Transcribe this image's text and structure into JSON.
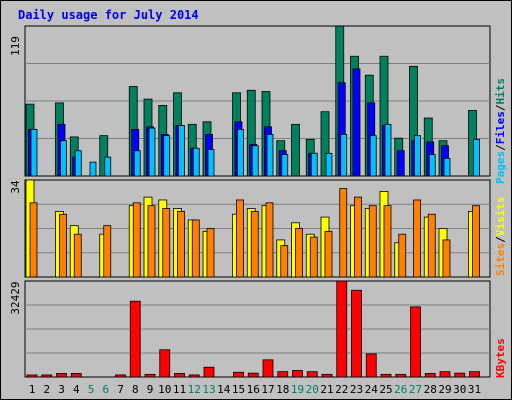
{
  "title": "Daily usage for July 2014",
  "colors": {
    "hits": "#00805c",
    "files": "#0000ff",
    "pages": "#00c0ff",
    "visits": "#ffff00",
    "sites": "#ff8000",
    "kbytes": "#ff0000",
    "weekend": "#00805c",
    "day": "#000000"
  },
  "panel_labels": {
    "top_max": "119",
    "mid_max": "34",
    "bot_max": "32429",
    "pages": "Pages",
    "files": "Files",
    "hits": "Hits",
    "sites": "Sites",
    "visits": "Visits",
    "kbytes": "KBytes",
    "sep": "/"
  },
  "chart_data": [
    {
      "type": "bar",
      "title": "Daily usage for July 2014",
      "categories": [
        "1",
        "2",
        "3",
        "4",
        "5",
        "6",
        "7",
        "8",
        "9",
        "10",
        "11",
        "12",
        "13",
        "14",
        "15",
        "16",
        "17",
        "18",
        "19",
        "20",
        "21",
        "22",
        "23",
        "24",
        "25",
        "26",
        "27",
        "28",
        "29",
        "30",
        "31"
      ],
      "weekend_days": [
        "5",
        "6",
        "12",
        "13",
        "19",
        "20",
        "26",
        "27"
      ],
      "ylim": [
        0,
        119
      ],
      "series": [
        {
          "name": "Hits",
          "values": [
            57,
            0,
            58,
            31,
            0,
            32,
            0,
            71,
            61,
            56,
            66,
            41,
            43,
            0,
            66,
            68,
            67,
            28,
            41,
            29,
            51,
            119,
            95,
            80,
            95,
            30,
            87,
            46,
            28,
            0,
            52
          ]
        },
        {
          "name": "Files",
          "values": [
            37,
            0,
            41,
            15,
            0,
            0,
            0,
            37,
            39,
            33,
            40,
            22,
            33,
            0,
            43,
            25,
            39,
            20,
            0,
            18,
            0,
            74,
            85,
            58,
            40,
            20,
            28,
            27,
            24,
            0,
            0
          ]
        },
        {
          "name": "Pages",
          "values": [
            37,
            0,
            28,
            20,
            11,
            15,
            0,
            20,
            38,
            32,
            40,
            22,
            21,
            0,
            37,
            24,
            33,
            17,
            0,
            18,
            18,
            33,
            0,
            32,
            41,
            0,
            32,
            17,
            14,
            0,
            29
          ]
        }
      ]
    },
    {
      "type": "bar",
      "ylim": [
        0,
        34
      ],
      "series": [
        {
          "name": "Visits",
          "values": [
            34,
            0,
            23,
            18,
            0,
            15,
            0,
            25,
            28,
            27,
            24,
            20,
            16,
            0,
            22,
            24,
            25,
            13,
            19,
            15,
            21,
            0,
            25,
            24,
            30,
            12,
            0,
            21,
            17,
            0,
            23
          ]
        },
        {
          "name": "Sites",
          "values": [
            26,
            0,
            22,
            15,
            0,
            18,
            0,
            26,
            25,
            24,
            23,
            20,
            17,
            0,
            27,
            23,
            26,
            11,
            17,
            14,
            16,
            31,
            28,
            25,
            25,
            15,
            27,
            22,
            13,
            0,
            25
          ]
        }
      ]
    },
    {
      "type": "bar",
      "ylim": [
        0,
        32429
      ],
      "series": [
        {
          "name": "KBytes",
          "values": [
            700,
            700,
            1200,
            1200,
            0,
            0,
            700,
            25600,
            900,
            9200,
            1200,
            700,
            3300,
            0,
            1600,
            1300,
            5800,
            1800,
            2200,
            1800,
            900,
            32429,
            29300,
            7800,
            900,
            900,
            23700,
            1200,
            1800,
            1300,
            1800
          ]
        }
      ]
    }
  ]
}
